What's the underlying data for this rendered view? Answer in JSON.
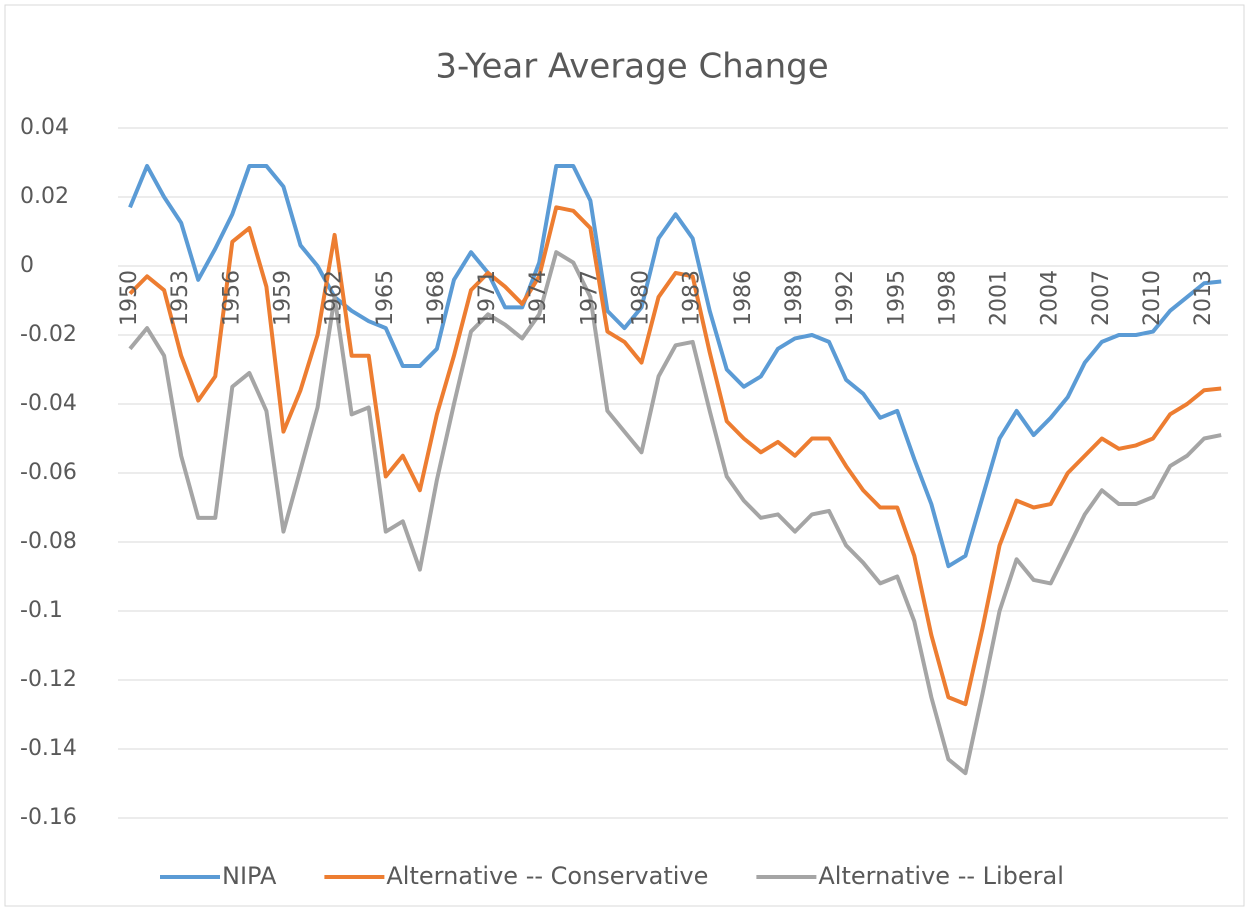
{
  "chart_data": {
    "type": "line",
    "title": "3-Year Average Change",
    "categories": [
      "1950",
      null,
      null,
      "1953",
      null,
      null,
      "1956",
      null,
      null,
      "1959",
      null,
      null,
      "1962",
      null,
      null,
      "1965",
      null,
      null,
      "1968",
      null,
      null,
      "1971",
      null,
      null,
      "1974",
      null,
      null,
      "1977",
      null,
      null,
      "1980",
      null,
      null,
      "1983",
      null,
      null,
      "1986",
      null,
      null,
      "1989",
      null,
      null,
      "1992",
      null,
      null,
      "1995",
      null,
      null,
      "1998",
      null,
      null,
      "2001",
      null,
      null,
      "2004",
      null,
      null,
      "2007",
      null,
      null,
      "2010",
      null,
      null,
      "2013",
      null
    ],
    "series": [
      {
        "name": "NIPA",
        "color": "#5b9bd5",
        "values": [
          0.017,
          0.029,
          0.02,
          0.0125,
          -0.004,
          0.005,
          0.015,
          0.029,
          0.029,
          0.023,
          0.006,
          0.0,
          -0.009,
          -0.013,
          -0.016,
          -0.018,
          -0.029,
          -0.029,
          -0.024,
          -0.004,
          0.004,
          -0.002,
          -0.012,
          -0.012,
          0.001,
          0.029,
          0.029,
          0.019,
          -0.013,
          -0.018,
          -0.012,
          0.008,
          0.015,
          0.008,
          -0.013,
          -0.03,
          -0.035,
          -0.032,
          -0.024,
          -0.021,
          -0.02,
          -0.022,
          -0.033,
          -0.037,
          -0.044,
          -0.042,
          -0.056,
          -0.069,
          -0.087,
          -0.084,
          -0.067,
          -0.05,
          -0.042,
          -0.049,
          -0.044,
          -0.038,
          -0.028,
          -0.022,
          -0.02,
          -0.02,
          -0.019,
          -0.013,
          -0.009,
          -0.005,
          -0.0045
        ]
      },
      {
        "name": "Alternative -- Conservative",
        "color": "#ed7d31",
        "values": [
          -0.008,
          -0.003,
          -0.007,
          -0.026,
          -0.039,
          -0.032,
          0.007,
          0.011,
          -0.006,
          -0.048,
          -0.036,
          -0.02,
          0.009,
          -0.026,
          -0.026,
          -0.061,
          -0.055,
          -0.065,
          -0.043,
          -0.026,
          -0.007,
          -0.002,
          -0.006,
          -0.011,
          -0.003,
          0.017,
          0.016,
          0.011,
          -0.019,
          -0.022,
          -0.028,
          -0.009,
          -0.002,
          -0.003,
          -0.025,
          -0.045,
          -0.05,
          -0.054,
          -0.051,
          -0.055,
          -0.05,
          -0.05,
          -0.058,
          -0.065,
          -0.07,
          -0.07,
          -0.084,
          -0.107,
          -0.125,
          -0.127,
          -0.105,
          -0.081,
          -0.068,
          -0.07,
          -0.069,
          -0.06,
          -0.055,
          -0.05,
          -0.053,
          -0.052,
          -0.05,
          -0.043,
          -0.04,
          -0.036,
          -0.0355
        ]
      },
      {
        "name": "Alternative -- Liberal",
        "color": "#a5a5a5",
        "values": [
          -0.024,
          -0.018,
          -0.026,
          -0.055,
          -0.073,
          -0.073,
          -0.035,
          -0.031,
          -0.042,
          -0.077,
          -0.059,
          -0.041,
          -0.009,
          -0.043,
          -0.041,
          -0.077,
          -0.074,
          -0.088,
          -0.062,
          -0.04,
          -0.019,
          -0.014,
          -0.017,
          -0.021,
          -0.014,
          0.004,
          0.001,
          -0.009,
          -0.042,
          -0.048,
          -0.054,
          -0.032,
          -0.023,
          -0.022,
          -0.042,
          -0.061,
          -0.068,
          -0.073,
          -0.072,
          -0.077,
          -0.072,
          -0.071,
          -0.081,
          -0.086,
          -0.092,
          -0.09,
          -0.103,
          -0.125,
          -0.143,
          -0.147,
          -0.124,
          -0.1,
          -0.085,
          -0.091,
          -0.092,
          -0.082,
          -0.072,
          -0.065,
          -0.069,
          -0.069,
          -0.067,
          -0.058,
          -0.055,
          -0.05,
          -0.049
        ]
      }
    ],
    "ylim": [
      -0.16,
      0.04
    ],
    "yticks": [
      0.04,
      0.02,
      0,
      -0.02,
      -0.04,
      -0.06,
      -0.08,
      -0.1,
      -0.12,
      -0.14,
      -0.16
    ],
    "grid": true,
    "legend": "bottom"
  }
}
